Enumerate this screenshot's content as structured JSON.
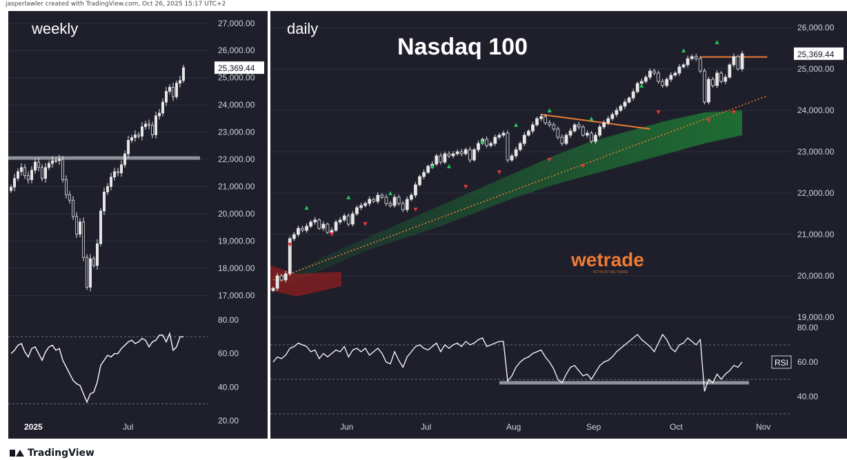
{
  "header": {
    "credit": "jasperlawler created with TradingView.com, Oct 26, 2025 15:17 UTC+2"
  },
  "footer": {
    "brand": "TradingView"
  },
  "watermark": {
    "brand": "wetrade",
    "tagline": "IN TRUST WE TRADE"
  },
  "colors": {
    "background": "#1e1f2b",
    "grid": "#2e3040",
    "candle_body": "#e6e6e6",
    "trendline": "#f07b33",
    "support": "#9aa0a6",
    "arrow_up": "#22c55e",
    "arrow_down": "#e53935",
    "ema_band": "#1f7a35"
  },
  "chart_data": [
    {
      "type": "candlestick",
      "name": "weekly",
      "label": "weekly",
      "timeframe": "weekly",
      "x_tick_labels": [
        "2025",
        "Jul"
      ],
      "price_axis": {
        "ticks": [
          17000,
          18000,
          19000,
          20000,
          21000,
          22000,
          23000,
          24000,
          25000,
          26000,
          27000
        ],
        "tick_labels": [
          "17,000.00",
          "18,000.00",
          "19,000.00",
          "20,000.00",
          "21,000.00",
          "22,000.00",
          "23,000.00",
          "24,000.00",
          "25,000.00",
          "26,000.00",
          "27,000.00"
        ],
        "ylim": [
          16400,
          27400
        ]
      },
      "last_price": {
        "value": 25369.44,
        "label": "25,369.44"
      },
      "support_level": 22050,
      "closes": [
        20980,
        21300,
        21550,
        21700,
        21400,
        21250,
        21600,
        21900,
        21700,
        21300,
        21700,
        21850,
        21950,
        21950,
        22000,
        21250,
        20700,
        20500,
        19900,
        19250,
        19700,
        18400,
        17300,
        18350,
        18100,
        18900,
        20100,
        20800,
        21000,
        21350,
        21550,
        21500,
        21800,
        22200,
        22700,
        22800,
        22900,
        22850,
        23200,
        23300,
        23250,
        22900,
        23600,
        23700,
        24100,
        24500,
        24650,
        24300,
        24800,
        24900,
        25370
      ],
      "rsi": {
        "tick_labels": [
          "20.00",
          "40.00",
          "60.00",
          "80.00"
        ],
        "ticks": [
          20,
          40,
          60,
          80
        ],
        "ylim": [
          15,
          85
        ],
        "levels": [
          30,
          70
        ],
        "values": [
          60,
          62,
          65,
          66,
          61,
          58,
          63,
          64,
          60,
          56,
          61,
          64,
          65,
          62,
          63,
          56,
          52,
          48,
          44,
          42,
          41,
          36,
          31,
          36,
          37,
          43,
          53,
          56,
          59,
          58,
          60,
          60,
          63,
          65,
          67,
          68,
          66,
          67,
          69,
          68,
          64,
          67,
          68,
          71,
          71,
          67,
          72,
          62,
          64,
          70,
          70
        ]
      }
    },
    {
      "type": "candlestick",
      "name": "daily",
      "label": "daily",
      "title": "Nasdaq 100",
      "timeframe": "daily",
      "x_tick_labels": [
        "Jun",
        "Jul",
        "Aug",
        "Sep",
        "Oct",
        "Nov"
      ],
      "price_axis": {
        "ticks": [
          19000,
          20000,
          21000,
          22000,
          23000,
          24000,
          25000,
          26000
        ],
        "tick_labels": [
          "19,000.00",
          "20,000.00",
          "21,000.00",
          "22,000.00",
          "23,000.00",
          "24,000.00",
          "25,000.00",
          "26,000.00"
        ],
        "ylim": [
          18900,
          26300
        ]
      },
      "last_price": {
        "value": 25369.44,
        "label": "25,369.44"
      },
      "closes": [
        19700,
        20000,
        19900,
        20050,
        20900,
        21000,
        21150,
        21100,
        21200,
        21300,
        21350,
        21150,
        21250,
        21050,
        21100,
        21300,
        21350,
        21450,
        21250,
        21500,
        21650,
        21700,
        21750,
        21850,
        21800,
        21950,
        21900,
        21750,
        21700,
        21900,
        21750,
        21600,
        21850,
        21950,
        22200,
        22400,
        22500,
        22650,
        22700,
        22900,
        22750,
        22950,
        22900,
        22950,
        23000,
        22950,
        23050,
        22800,
        23050,
        23200,
        23300,
        23150,
        23200,
        23350,
        23400,
        23450,
        22800,
        22900,
        23050,
        23200,
        23400,
        23500,
        23650,
        23800,
        23850,
        23700,
        23650,
        23550,
        23350,
        23200,
        23400,
        23500,
        23650,
        23600,
        23400,
        23450,
        23250,
        23400,
        23600,
        23700,
        23800,
        23900,
        24000,
        24100,
        24200,
        24300,
        24450,
        24650,
        24700,
        24800,
        24950,
        24900,
        24700,
        24600,
        24750,
        24850,
        24900,
        25050,
        25100,
        25250,
        25300,
        25250,
        24950,
        24200,
        24750,
        24600,
        24900,
        24700,
        24800,
        25100,
        25300,
        25000,
        25369
      ],
      "trendline_resistance": {
        "from": {
          "index": 64,
          "value": 23900
        },
        "to": {
          "index": 90,
          "value": 23550
        }
      },
      "trendline_top": {
        "from": {
          "index": 102,
          "value": 25290
        },
        "to": {
          "index": 118,
          "value": 25290
        }
      },
      "trendline_support": {
        "from": {
          "index": 0,
          "value": 19900
        },
        "to": {
          "index": 118,
          "value": 24350
        }
      },
      "ema_band_upper": [
        20050,
        20500,
        20900,
        21300,
        21700,
        22100,
        22500,
        22900,
        23250,
        23500,
        23750,
        23950,
        24000
      ],
      "ema_band_lower": [
        19800,
        20200,
        20600,
        20900,
        21200,
        21550,
        21900,
        22200,
        22450,
        22700,
        22950,
        23200,
        23400
      ],
      "fractal_up": [
        [
          8,
          21650
        ],
        [
          18,
          21900
        ],
        [
          28,
          22000
        ],
        [
          38,
          22650
        ],
        [
          42,
          22650
        ],
        [
          50,
          23250
        ],
        [
          58,
          23650
        ],
        [
          66,
          24000
        ],
        [
          76,
          23800
        ],
        [
          88,
          24600
        ],
        [
          98,
          25450
        ],
        [
          106,
          25650
        ]
      ],
      "fractal_down": [
        [
          4,
          20750
        ],
        [
          14,
          21000
        ],
        [
          22,
          21250
        ],
        [
          34,
          21600
        ],
        [
          46,
          22150
        ],
        [
          54,
          22500
        ],
        [
          66,
          22800
        ],
        [
          74,
          22650
        ],
        [
          92,
          23950
        ],
        [
          104,
          23750
        ],
        [
          110,
          23950
        ]
      ],
      "rsi": {
        "label": "RSI",
        "value_label": "60.00",
        "tick_labels": [
          "40.00",
          "60.00",
          "80.00"
        ],
        "ticks": [
          40,
          60,
          80
        ],
        "ylim": [
          30,
          82
        ],
        "levels": [
          30,
          50,
          70
        ],
        "support_level": 48,
        "values": [
          60,
          63,
          62,
          64,
          68,
          69,
          71,
          70,
          69,
          66,
          67,
          62,
          65,
          63,
          65,
          67,
          66,
          69,
          63,
          67,
          68,
          66,
          68,
          64,
          66,
          68,
          65,
          60,
          59,
          66,
          61,
          57,
          63,
          66,
          69,
          70,
          68,
          67,
          69,
          71,
          66,
          70,
          68,
          70,
          71,
          69,
          72,
          70,
          71,
          73,
          74,
          69,
          70,
          71,
          72,
          72,
          49,
          52,
          57,
          60,
          62,
          63,
          65,
          66,
          67,
          63,
          60,
          56,
          50,
          48,
          53,
          57,
          58,
          55,
          52,
          53,
          50,
          54,
          58,
          60,
          61,
          63,
          66,
          68,
          70,
          72,
          74,
          76,
          73,
          71,
          69,
          66,
          71,
          76,
          73,
          68,
          66,
          70,
          71,
          74,
          72,
          70,
          73,
          43,
          50,
          48,
          53,
          50,
          53,
          55,
          58,
          57,
          60
        ]
      }
    }
  ]
}
